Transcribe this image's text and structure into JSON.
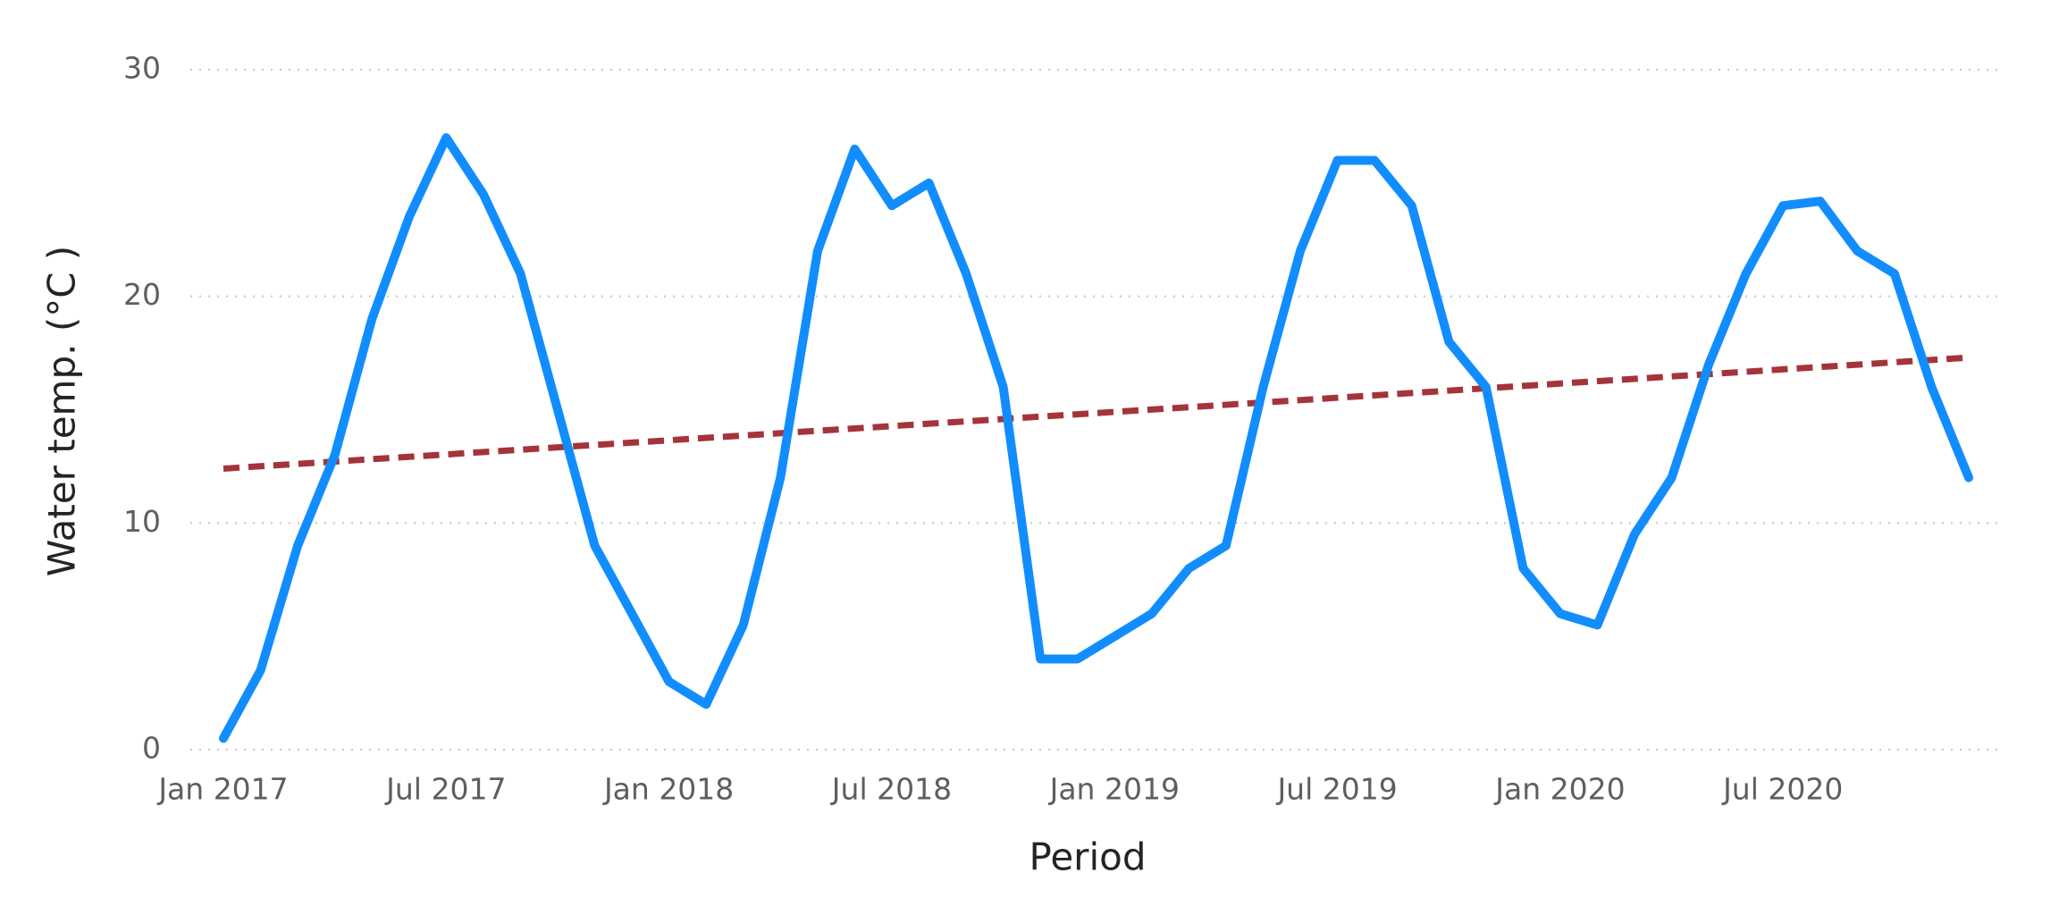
{
  "chart_data": {
    "type": "line",
    "x_label": "Period",
    "y_label": "Water temp. (°C )",
    "x": [
      "2017-01",
      "2017-02",
      "2017-03",
      "2017-04",
      "2017-05",
      "2017-06",
      "2017-07",
      "2017-08",
      "2017-09",
      "2017-10",
      "2017-11",
      "2017-12",
      "2018-01",
      "2018-02",
      "2018-03",
      "2018-04",
      "2018-05",
      "2018-06",
      "2018-07",
      "2018-08",
      "2018-09",
      "2018-10",
      "2018-11",
      "2018-12",
      "2019-01",
      "2019-02",
      "2019-03",
      "2019-04",
      "2019-05",
      "2019-06",
      "2019-07",
      "2019-08",
      "2019-09",
      "2019-10",
      "2019-11",
      "2019-12",
      "2020-01",
      "2020-02",
      "2020-03",
      "2020-04",
      "2020-05",
      "2020-06",
      "2020-07",
      "2020-08",
      "2020-09",
      "2020-10",
      "2020-11",
      "2020-12"
    ],
    "series": [
      {
        "color": "#118DFF",
        "values": [
          0.5,
          3.5,
          9,
          13,
          19,
          23.5,
          27,
          24.5,
          21,
          15,
          9,
          6,
          3,
          2,
          5.5,
          12,
          22,
          26.5,
          24,
          25,
          21,
          16,
          4,
          4,
          5,
          6,
          8,
          9,
          16,
          22,
          26,
          26,
          24,
          18,
          16,
          8,
          6,
          5.5,
          9.5,
          12,
          17,
          21,
          24,
          24.2,
          22,
          21,
          16,
          12
        ]
      }
    ],
    "trend": {
      "color": "#A4343A",
      "dashed": true,
      "start": 12.4,
      "end": 17.3
    },
    "xlim": [
      "2017-01",
      "2020-12"
    ],
    "xticks": [
      {
        "value": "2017-01",
        "label": "Jan 2017"
      },
      {
        "value": "2017-07",
        "label": "Jul 2017"
      },
      {
        "value": "2018-01",
        "label": "Jan 2018"
      },
      {
        "value": "2018-07",
        "label": "Jul 2018"
      },
      {
        "value": "2019-01",
        "label": "Jan 2019"
      },
      {
        "value": "2019-07",
        "label": "Jul 2019"
      },
      {
        "value": "2020-01",
        "label": "Jan 2020"
      },
      {
        "value": "2020-07",
        "label": "Jul 2020"
      }
    ],
    "ylim": [
      0,
      30
    ],
    "yticks": [
      0,
      10,
      20,
      30
    ],
    "grid": true
  }
}
